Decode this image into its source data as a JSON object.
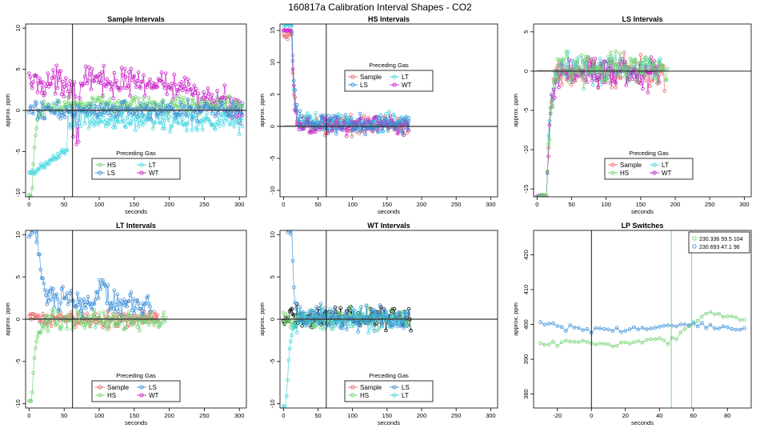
{
  "page_title": "160817a   Calibration Interval Shapes - CO2",
  "legend_title": "Preceding Gas",
  "colors": {
    "Sample": "#e8696b",
    "HS": "#6fd36f",
    "LS": "#3a8fd8",
    "LT": "#3fd6e0",
    "WT": "#c81ec8",
    "black": "#000000",
    "mean": "#555555"
  },
  "chart_data": [
    {
      "type": "scatter",
      "title": "Sample Intervals",
      "xlabel": "seconds",
      "ylabel": "approx. ppm",
      "xlim": [
        -5,
        310
      ],
      "ylim": [
        -10.5,
        10.5
      ],
      "xticks": [
        0,
        50,
        100,
        150,
        200,
        250,
        300
      ],
      "yticks": [
        -10,
        -5,
        0,
        5,
        10
      ],
      "hline": 0,
      "vline": 62,
      "legend": {
        "position": "bottom-center",
        "entries": [
          "HS",
          "LT",
          "LS",
          "WT"
        ]
      },
      "series": [
        {
          "name": "WT",
          "shape": "wt",
          "x_end": 305,
          "start": 4.5,
          "offset": 3.5,
          "noise": 1.5
        },
        {
          "name": "LT",
          "shape": "lt_sample",
          "x_end": 305,
          "start": -10,
          "offset": -1.8,
          "noise": 1.2
        },
        {
          "name": "HS",
          "shape": "rise",
          "x_end": 305,
          "start": -10.5,
          "offset": 0.7,
          "noise": 0.8
        },
        {
          "name": "LS",
          "shape": "flat",
          "x_end": 305,
          "start": -1,
          "offset": 0,
          "noise": 0.9
        }
      ]
    },
    {
      "type": "scatter",
      "title": "HS Intervals",
      "xlabel": "seconds",
      "ylabel": "approx. ppm",
      "xlim": [
        -5,
        310
      ],
      "ylim": [
        -11,
        16
      ],
      "xticks": [
        0,
        50,
        100,
        150,
        200,
        250,
        300
      ],
      "yticks": [
        -10,
        -5,
        0,
        5,
        10,
        15
      ],
      "hline": 0,
      "vline": 62,
      "legend": {
        "position": "top-center",
        "entries": [
          "Sample",
          "LT",
          "LS",
          "WT"
        ]
      },
      "series": [
        {
          "name": "Sample",
          "shape": "decay",
          "x_end": 182,
          "start": 14,
          "offset": 0.3,
          "noise": 1.2
        },
        {
          "name": "LT",
          "shape": "decay",
          "x_end": 182,
          "start": 16,
          "offset": 0.5,
          "noise": 1.3
        },
        {
          "name": "WT",
          "shape": "decay",
          "x_end": 182,
          "start": 15,
          "offset": 0.2,
          "noise": 1.2
        },
        {
          "name": "LS",
          "shape": "decay",
          "x_end": 182,
          "start": 17,
          "offset": 0.4,
          "noise": 1.3
        }
      ]
    },
    {
      "type": "scatter",
      "title": "LS Intervals",
      "xlabel": "seconds",
      "ylabel": "approx. ppm",
      "xlim": [
        -5,
        310
      ],
      "ylim": [
        -16,
        6
      ],
      "xticks": [
        0,
        50,
        100,
        150,
        200,
        250,
        300
      ],
      "yticks": [
        -15,
        -10,
        -5,
        0,
        5
      ],
      "hline": 0,
      "vline": null,
      "legend": {
        "position": "bottom-center",
        "entries": [
          "Sample",
          "LT",
          "HS",
          "WT"
        ]
      },
      "series": [
        {
          "name": "Sample",
          "shape": "rise_ls",
          "x_end": 185,
          "start": -16,
          "offset": 0,
          "noise": 1.6
        },
        {
          "name": "LT",
          "shape": "rise_ls",
          "x_end": 180,
          "start": -16,
          "offset": 0.3,
          "noise": 1.7
        },
        {
          "name": "WT",
          "shape": "rise_ls",
          "x_end": 178,
          "start": -16,
          "offset": -0.2,
          "noise": 1.6
        },
        {
          "name": "HS",
          "shape": "rise_ls",
          "x_end": 190,
          "start": -16,
          "offset": 0.5,
          "noise": 1.8
        }
      ]
    },
    {
      "type": "scatter",
      "title": "LT Intervals",
      "xlabel": "seconds",
      "ylabel": "approx. ppm",
      "xlim": [
        -5,
        310
      ],
      "ylim": [
        -10.5,
        10.5
      ],
      "xticks": [
        0,
        50,
        100,
        150,
        200,
        250,
        300
      ],
      "yticks": [
        -10,
        -5,
        0,
        5,
        10
      ],
      "hline": 0,
      "vline": 62,
      "legend": {
        "position": "bottom-center",
        "entries": [
          "Sample",
          "LS",
          "HS",
          "WT"
        ]
      },
      "series": [
        {
          "name": "Sample",
          "shape": "flat",
          "x_end": 185,
          "start": 0,
          "offset": 0,
          "noise": 0.8
        },
        {
          "name": "HS",
          "shape": "rise",
          "x_end": 195,
          "start": -9.5,
          "offset": -0.3,
          "noise": 1.0
        },
        {
          "name": "LS",
          "shape": "decay_lt",
          "x_end": 175,
          "start": 10.5,
          "offset": 2.5,
          "noise": 1.3
        }
      ]
    },
    {
      "type": "scatter",
      "title": "WT Intervals",
      "xlabel": "seconds",
      "ylabel": "approx. ppm",
      "xlim": [
        -5,
        310
      ],
      "ylim": [
        -10.5,
        10.5
      ],
      "xticks": [
        0,
        50,
        100,
        150,
        200,
        250,
        300
      ],
      "yticks": [
        -10,
        -5,
        0,
        5,
        10
      ],
      "hline": 0,
      "vline": 62,
      "legend": {
        "position": "bottom-center",
        "entries": [
          "Sample",
          "LS",
          "HS",
          "LT"
        ]
      },
      "series": [
        {
          "name": "black",
          "shape": "flat",
          "x_end": 185,
          "start": 0,
          "offset": 0.2,
          "noise": 1.1
        },
        {
          "name": "HS",
          "shape": "flat",
          "x_end": 180,
          "start": 0,
          "offset": 0,
          "noise": 1.0
        },
        {
          "name": "LT",
          "shape": "rise",
          "x_end": 180,
          "start": -10.5,
          "offset": 0,
          "noise": 1.0
        },
        {
          "name": "LS",
          "shape": "decay",
          "x_end": 182,
          "start": 10.5,
          "offset": 0.1,
          "noise": 1.2
        }
      ]
    },
    {
      "type": "scatter",
      "title": "LP Switches",
      "xlabel": "seconds",
      "ylabel": "approx. ppm",
      "xlim": [
        -34,
        94
      ],
      "ylim": [
        376,
        427
      ],
      "xticks": [
        -20,
        0,
        20,
        40,
        60,
        80
      ],
      "yticks": [
        380,
        390,
        400,
        410,
        420
      ],
      "hline": null,
      "vline": 0,
      "extra_vlines": [
        {
          "x": 47,
          "color": "HS"
        },
        {
          "x": 59,
          "color": "HS"
        }
      ],
      "legend": {
        "position": "top-right",
        "entries": [
          "230.336 59.5 104",
          "230.693 47.1 96"
        ]
      },
      "series": [
        {
          "name": "HS",
          "shape": "lp_green",
          "x_start": -30,
          "x_end": 90
        },
        {
          "name": "LS",
          "shape": "lp_blue",
          "x_start": -30,
          "x_end": 90
        }
      ]
    }
  ]
}
